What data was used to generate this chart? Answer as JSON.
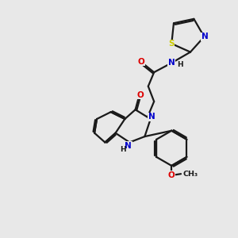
{
  "background_color": "#e8e8e8",
  "bond_color": "#1a1a1a",
  "atom_colors": {
    "N": "#0000cc",
    "O": "#dd0000",
    "S": "#cccc00",
    "C": "#1a1a1a",
    "H": "#1a1a1a"
  },
  "figsize": [
    3.0,
    3.0
  ],
  "dpi": 100,
  "lw": 1.6
}
